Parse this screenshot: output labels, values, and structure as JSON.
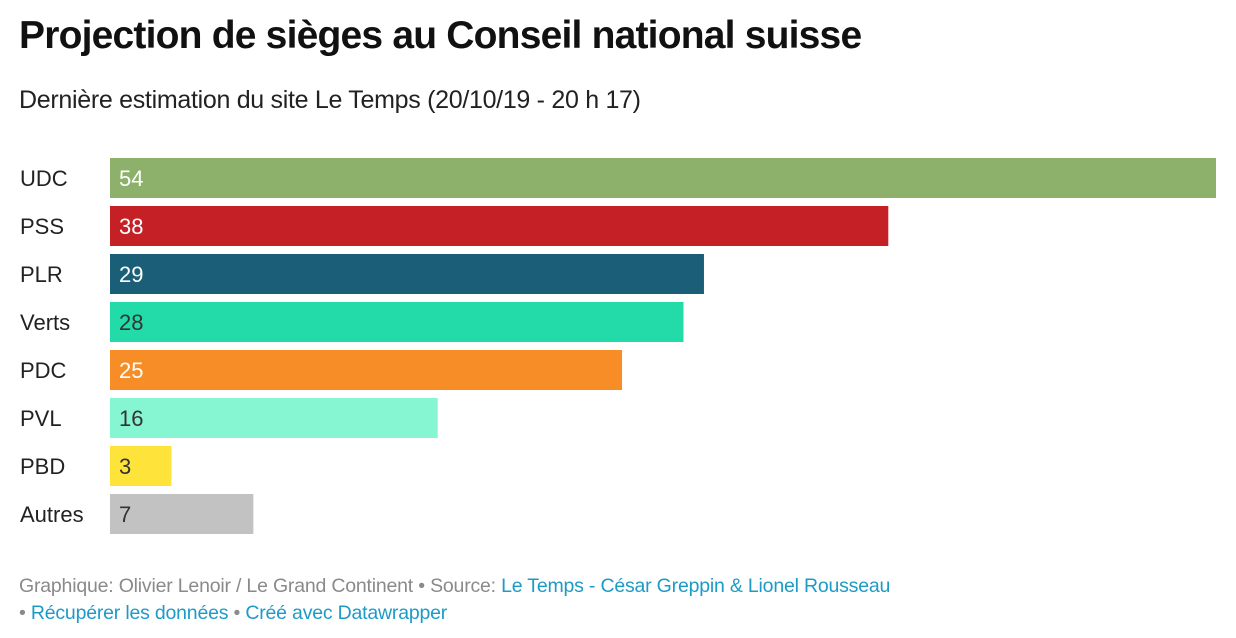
{
  "header": {
    "title": "Projection de sièges au Conseil national suisse",
    "subtitle": "Dernière estimation du site Le Temps (20/10/19 - 20 h 17)"
  },
  "chart_data": {
    "type": "bar",
    "orientation": "horizontal",
    "title": "Projection de sièges au Conseil national suisse",
    "subtitle": "Dernière estimation du site Le Temps (20/10/19 - 20 h 17)",
    "xlabel": "",
    "ylabel": "",
    "xlim": [
      0,
      54
    ],
    "grid": false,
    "categories": [
      "UDC",
      "PSS",
      "PLR",
      "Verts",
      "PDC",
      "PVL",
      "PBD",
      "Autres"
    ],
    "values": [
      54,
      38,
      29,
      28,
      25,
      16,
      3,
      7
    ],
    "colors": [
      "#8db06a",
      "#c42025",
      "#1b5e77",
      "#22dba8",
      "#f68d26",
      "#86f5d2",
      "#fde33a",
      "#c2c2c2"
    ],
    "label_colors": [
      "#ffffff",
      "#ffffff",
      "#ffffff",
      "#333333",
      "#ffffff",
      "#333333",
      "#333333",
      "#333333"
    ],
    "data_labels": [
      "54",
      "38",
      "29",
      "28",
      "25",
      "16",
      "3",
      "7"
    ]
  },
  "footer": {
    "credit_prefix": "Graphique: ",
    "credit": "Olivier Lenoir / Le Grand Continent",
    "separator": " • ",
    "source_prefix": "Source: ",
    "source_link": "Le Temps - César Greppin & Lionel Rousseau",
    "get_data_link": "Récupérer les données",
    "made_with_link": "Créé avec Datawrapper"
  }
}
